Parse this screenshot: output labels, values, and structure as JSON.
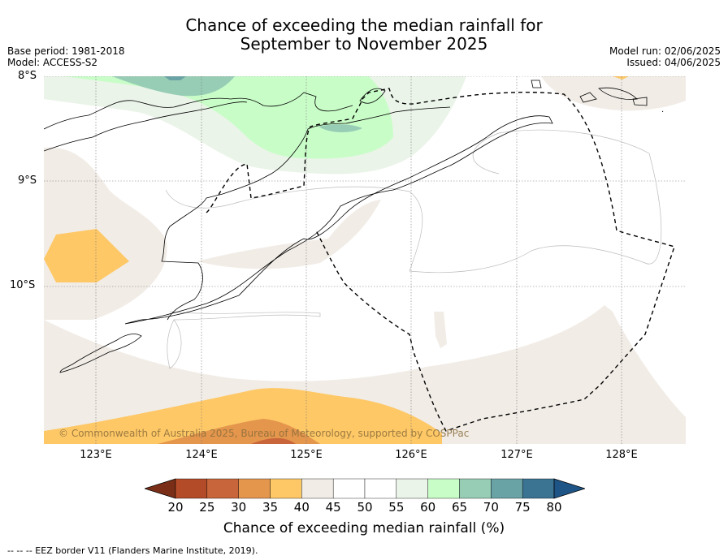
{
  "title_line1": "Chance of exceeding the median rainfall for",
  "title_line2": "September to November 2025",
  "meta_left_1": "Base period: 1981-2018",
  "meta_left_2": "Model: ACCESS-S2",
  "meta_right_1": "Model run: 02/06/2025",
  "meta_right_2": "Issued: 04/06/2025",
  "lat_labels": [
    "8°S",
    "9°S",
    "10°S"
  ],
  "lon_labels": [
    "123°E",
    "124°E",
    "125°E",
    "126°E",
    "127°E",
    "128°E"
  ],
  "copyright": "© Commonwealth of Australia 2025, Bureau of Meteorology, supported by COSPPac",
  "colorbar": {
    "ticks": [
      "20",
      "25",
      "30",
      "35",
      "40",
      "45",
      "50",
      "55",
      "60",
      "65",
      "70",
      "75",
      "80"
    ],
    "colors": [
      "#7a2e17",
      "#b34a28",
      "#c9653a",
      "#e5964d",
      "#fec866",
      "#f1ece6",
      "#ffffff",
      "#ffffff",
      "#eaf4e8",
      "#c9fdc8",
      "#97cdb5",
      "#6aa3a5",
      "#3b7493",
      "#1f5586"
    ],
    "label": "Chance of exceeding median rainfall (%)"
  },
  "footnote": "--  --  -- EEZ border V11 (Flanders Marine Institute, 2019)."
}
